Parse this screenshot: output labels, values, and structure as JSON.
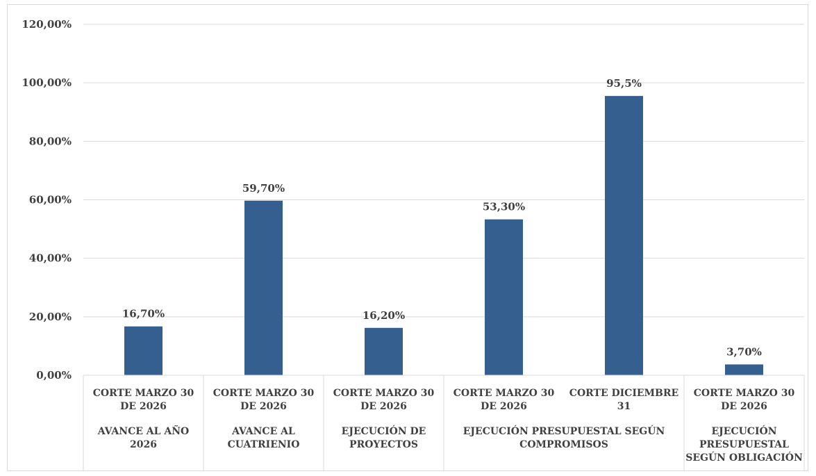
{
  "chart_data": {
    "type": "bar",
    "y_ticks": [
      "0,00%",
      "20,00%",
      "40,00%",
      "60,00%",
      "80,00%",
      "100,00%",
      "120,00%"
    ],
    "ylim": [
      0,
      120
    ],
    "grid": true,
    "bar_color": "#355f8e",
    "bars": [
      {
        "category": [
          "CORTE MARZO 30",
          "DE 2026"
        ],
        "value": 16.7,
        "label": "16,70%"
      },
      {
        "category": [
          "CORTE MARZO 30",
          "DE 2026"
        ],
        "value": 59.7,
        "label": "59,70%"
      },
      {
        "category": [
          "CORTE MARZO 30",
          "DE 2026"
        ],
        "value": 16.2,
        "label": "16,20%"
      },
      {
        "category": [
          "CORTE MARZO 30",
          "DE 2026"
        ],
        "value": 53.3,
        "label": "53,30%"
      },
      {
        "category": [
          "CORTE DICIEMBRE",
          "31"
        ],
        "value": 95.5,
        "label": "95,5%"
      },
      {
        "category": [
          "CORTE MARZO 30",
          "DE 2026"
        ],
        "value": 3.7,
        "label": "3,70%"
      }
    ],
    "groups": [
      {
        "label": [
          "AVANCE  AL AÑO",
          "2026"
        ],
        "bars": [
          0
        ]
      },
      {
        "label": [
          "AVANCE  AL",
          "CUATRIENIO"
        ],
        "bars": [
          1
        ]
      },
      {
        "label": [
          "EJECUCIÓN DE",
          "PROYECTOS"
        ],
        "bars": [
          2
        ]
      },
      {
        "label": [
          "EJECUCIÓN PRESUPUESTAL SEGÚN",
          "COMPROMISOS"
        ],
        "bars": [
          3,
          4
        ]
      },
      {
        "label": [
          "EJECUCIÓN",
          "PRESUPUESTAL",
          "SEGÚN OBLIGACIÓN"
        ],
        "bars": [
          5
        ]
      }
    ]
  }
}
